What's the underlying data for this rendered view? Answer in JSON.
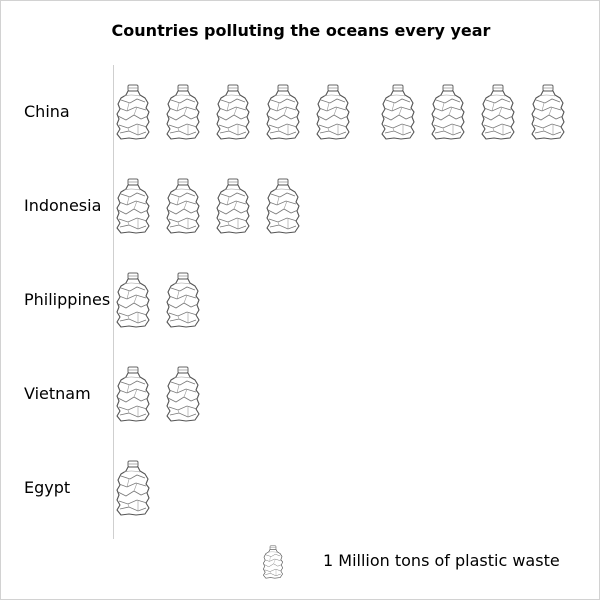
{
  "chart_data": {
    "type": "pictograph",
    "title": "Countries polluting the oceans every year",
    "categories": [
      "China",
      "Indonesia",
      "Philippines",
      "Vietnam",
      "Egypt"
    ],
    "values": [
      9,
      4,
      2,
      2,
      1
    ],
    "icon": "plastic-bottle-icon",
    "legend": {
      "icon": "plastic-bottle-icon",
      "label": "1 Million tons of plastic waste",
      "unit_value": 1
    }
  }
}
